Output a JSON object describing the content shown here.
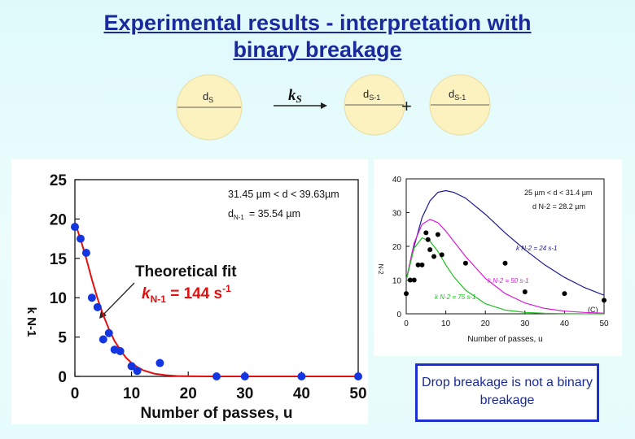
{
  "title": {
    "line1": "Experimental results - interpretation with",
    "line2": "binary breakage"
  },
  "diagram": {
    "parent_label": "d",
    "parent_sub": "S",
    "rate_label": "k",
    "rate_sub": "S",
    "plus": "+",
    "child_label": "d",
    "child_sub": "S-1"
  },
  "callout": {
    "text": "Drop breakage is not a binary breakage"
  },
  "colors": {
    "title": "#1a2a9c",
    "fit": "#e01010",
    "points": "#1436e0",
    "circle": "#fbf2c0"
  },
  "chart_data": [
    {
      "type": "scatter",
      "xlabel": "Number of passes, u",
      "ylabel": "k N-1",
      "xlim": [
        0,
        50
      ],
      "ylim": [
        0,
        25
      ],
      "xticks": [
        0,
        10,
        20,
        30,
        40,
        50
      ],
      "yticks": [
        0,
        5,
        10,
        15,
        20,
        25
      ],
      "annotation_range": "31.45 µm < d < 39.63µm",
      "annotation_d": "35.54 µm",
      "annotation_d_label": "d",
      "annotation_d_sub": "N-1",
      "fit_title": "Theoretical fit",
      "fit_k_label": "k",
      "fit_k_sub": "N-1",
      "fit_k_value": " = 144 s",
      "fit_k_exp": "-1",
      "series": [
        {
          "name": "data",
          "points": [
            [
              0,
              19
            ],
            [
              1,
              17.5
            ],
            [
              2,
              15.7
            ],
            [
              3,
              10
            ],
            [
              4,
              8.8
            ],
            [
              5,
              4.7
            ],
            [
              6,
              5.5
            ],
            [
              7,
              3.4
            ],
            [
              8,
              3.2
            ],
            [
              10,
              1.3
            ],
            [
              11,
              0.7
            ],
            [
              15,
              1.7
            ],
            [
              25,
              0
            ],
            [
              30,
              0
            ],
            [
              40,
              0
            ],
            [
              50,
              0
            ]
          ]
        },
        {
          "name": "fit",
          "points": [
            [
              0,
              19.6
            ],
            [
              1,
              17.4
            ],
            [
              2,
              15
            ],
            [
              3,
              12.3
            ],
            [
              4,
              9.9
            ],
            [
              5,
              7.8
            ],
            [
              6,
              6
            ],
            [
              7,
              4.5
            ],
            [
              8,
              3.4
            ],
            [
              9,
              2.4
            ],
            [
              10,
              1.7
            ],
            [
              11,
              1.2
            ],
            [
              12,
              0.8
            ],
            [
              14,
              0.35
            ],
            [
              16,
              0.15
            ],
            [
              18,
              0.05
            ],
            [
              20,
              0.02
            ],
            [
              24,
              0
            ],
            [
              30,
              0
            ],
            [
              50,
              0
            ]
          ]
        }
      ]
    },
    {
      "type": "line",
      "xlabel": "Number of passes, u",
      "ylabel": "N-2",
      "xlim": [
        0,
        50
      ],
      "ylim": [
        0,
        40
      ],
      "xticks": [
        0,
        10,
        20,
        30,
        40,
        50
      ],
      "yticks": [
        0,
        10,
        20,
        30,
        40
      ],
      "annotation_range": "25 µm < d < 31.4 µm",
      "annotation_d": "d N-2 = 28.2 µm",
      "panel_label": "(C)",
      "series": [
        {
          "name": "k N-2 = 24 s-1",
          "color": "#1a1a90",
          "points": [
            [
              0,
              10
            ],
            [
              2,
              20
            ],
            [
              4,
              28.5
            ],
            [
              6,
              33.5
            ],
            [
              8,
              36
            ],
            [
              10,
              36.5
            ],
            [
              12,
              36
            ],
            [
              15,
              34.3
            ],
            [
              20,
              29.5
            ],
            [
              25,
              24
            ],
            [
              30,
              19
            ],
            [
              35,
              14.5
            ],
            [
              40,
              10.8
            ],
            [
              45,
              7.8
            ],
            [
              50,
              5.5
            ]
          ]
        },
        {
          "name": "k N-2 = 50 s-1",
          "color": "#d81cd8",
          "points": [
            [
              0,
              10
            ],
            [
              2,
              21
            ],
            [
              4,
              26.5
            ],
            [
              6,
              28
            ],
            [
              8,
              27
            ],
            [
              10,
              24.5
            ],
            [
              12,
              21.5
            ],
            [
              15,
              17
            ],
            [
              20,
              10.5
            ],
            [
              25,
              6
            ],
            [
              30,
              3.2
            ],
            [
              35,
              1.6
            ],
            [
              40,
              0.8
            ],
            [
              45,
              0.4
            ],
            [
              50,
              0.2
            ]
          ]
        },
        {
          "name": "k N-2 = 75 s-1",
          "color": "#20c020",
          "points": [
            [
              0,
              10
            ],
            [
              2,
              19.5
            ],
            [
              4,
              22.5
            ],
            [
              6,
              21.5
            ],
            [
              8,
              18.5
            ],
            [
              10,
              14.5
            ],
            [
              12,
              11
            ],
            [
              15,
              7
            ],
            [
              20,
              3
            ],
            [
              25,
              1.1
            ],
            [
              30,
              0.4
            ],
            [
              35,
              0.15
            ],
            [
              40,
              0.05
            ],
            [
              50,
              0
            ]
          ]
        },
        {
          "name": "data",
          "color": "#000000",
          "points": [
            [
              0,
              6
            ],
            [
              1,
              10
            ],
            [
              2,
              10
            ],
            [
              3,
              14.5
            ],
            [
              4,
              14.5
            ],
            [
              5,
              24
            ],
            [
              5.5,
              22
            ],
            [
              6,
              19
            ],
            [
              7,
              17
            ],
            [
              8,
              23.5
            ],
            [
              9,
              17.5
            ],
            [
              15,
              15
            ],
            [
              25,
              15
            ],
            [
              30,
              6.5
            ],
            [
              40,
              6
            ],
            [
              50,
              4
            ]
          ]
        }
      ]
    }
  ]
}
